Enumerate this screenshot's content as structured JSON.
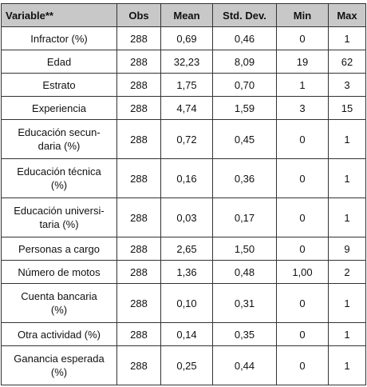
{
  "table": {
    "header": [
      "Variable**",
      "Obs",
      "Mean",
      "Std. Dev.",
      "Min",
      "Max"
    ],
    "rows": [
      [
        "Infractor (%)",
        "288",
        "0,69",
        "0,46",
        "0",
        "1"
      ],
      [
        "Edad",
        "288",
        "32,23",
        "8,09",
        "19",
        "62"
      ],
      [
        "Estrato",
        "288",
        "1,75",
        "0,70",
        "1",
        "3"
      ],
      [
        "Experiencia",
        "288",
        "4,74",
        "1,59",
        "3",
        "15"
      ],
      [
        "Educación secun-\ndaria (%)",
        "288",
        "0,72",
        "0,45",
        "0",
        "1"
      ],
      [
        "Educación técnica\n(%)",
        "288",
        "0,16",
        "0,36",
        "0",
        "1"
      ],
      [
        "Educación universi-\ntaria (%)",
        "288",
        "0,03",
        "0,17",
        "0",
        "1"
      ],
      [
        "Personas a cargo",
        "288",
        "2,65",
        "1,50",
        "0",
        "9"
      ],
      [
        "Número de motos",
        "288",
        "1,36",
        "0,48",
        "1,00",
        "2"
      ],
      [
        "Cuenta bancaria\n(%)",
        "288",
        "0,10",
        "0,31",
        "0",
        "1"
      ],
      [
        "Otra actividad (%)",
        "288",
        "0,14",
        "0,35",
        "0",
        "1"
      ],
      [
        "Ganancia esperada\n(%)",
        "288",
        "0,25",
        "0,44",
        "0",
        "1"
      ]
    ]
  }
}
